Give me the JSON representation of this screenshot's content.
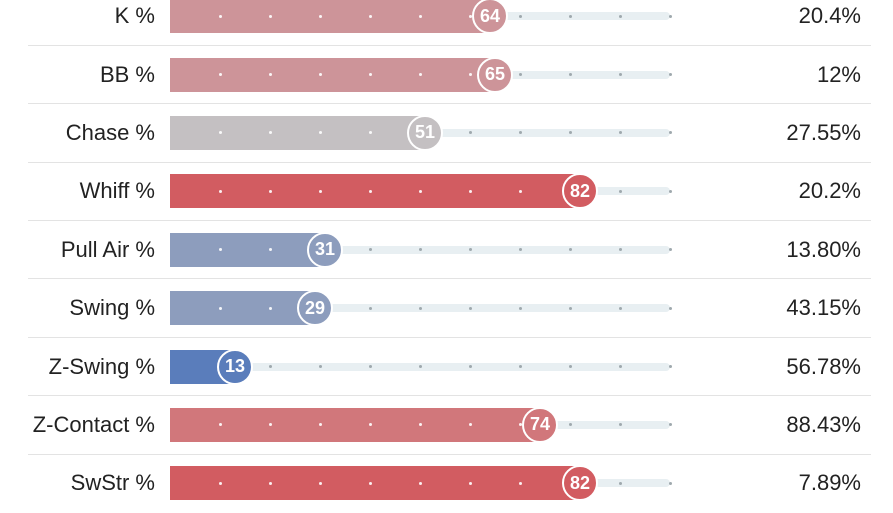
{
  "chart_data": {
    "type": "bar",
    "orientation": "horizontal",
    "scale": [
      0,
      100
    ],
    "categories": [
      "K %",
      "BB %",
      "Chase %",
      "Whiff %",
      "Pull Air %",
      "Swing %",
      "Z-Swing %",
      "Z-Contact %",
      "SwStr %"
    ],
    "values": [
      64,
      65,
      51,
      82,
      31,
      29,
      13,
      74,
      82
    ],
    "stat_values": [
      "20.4%",
      "12%",
      "27.55%",
      "20.2%",
      "13.80%",
      "43.15%",
      "56.78%",
      "88.43%",
      "7.89%"
    ],
    "colors": [
      "#cd9499",
      "#cd9499",
      "#c4c0c2",
      "#d25c61",
      "#8d9dbd",
      "#8d9dbd",
      "#5a7dbb",
      "#d1777b",
      "#d25c61"
    ],
    "track_color": "#e8eff2"
  }
}
